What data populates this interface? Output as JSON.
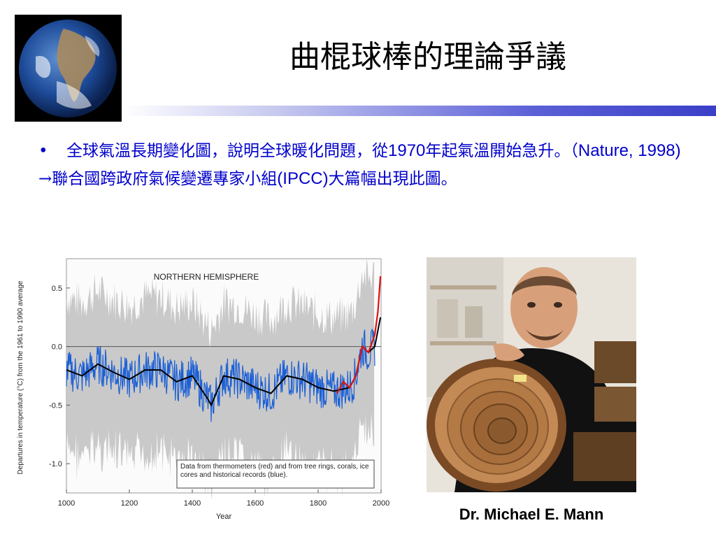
{
  "title": "曲棍球棒的理論爭議",
  "bullets": {
    "b1_prefix": "全球氣溫長期變化圖，說明全球暖化問題，從",
    "b1_year": "1970",
    "b1_mid": "年起氣溫開始急升。（",
    "b1_cite": "Nature, 1998)",
    "b2_arrow": "→",
    "b2_prefix": "聯合國跨政府氣候變遷專家小組",
    "b2_ipcc": "(IPCC)",
    "b2_suffix": "大篇幅出現此圖。"
  },
  "chart_data": {
    "type": "line",
    "title": "NORTHERN HEMISPHERE",
    "xlabel": "Year",
    "ylabel": "Departures in temperature (°C) from the 1961 to 1990 average",
    "xlim": [
      1000,
      2000
    ],
    "ylim": [
      -1.25,
      0.75
    ],
    "x_ticks": [
      "1000",
      "1200",
      "1400",
      "1600",
      "1800",
      "2000"
    ],
    "y_ticks": [
      "0.5",
      "0.0",
      "-0.5",
      "-1.0"
    ],
    "annotation": "Data from thermometers (red) and from tree rings, corals, ice cores and historical records (blue).",
    "series": [
      {
        "color": "#000000",
        "x": [
          1000,
          1050,
          1100,
          1150,
          1200,
          1250,
          1300,
          1350,
          1400,
          1450,
          1460,
          1500,
          1550,
          1600,
          1650,
          1700,
          1750,
          1800,
          1850,
          1900,
          1920,
          1940,
          1960,
          1980,
          1998
        ],
        "y": [
          -0.2,
          -0.25,
          -0.15,
          -0.22,
          -0.28,
          -0.2,
          -0.2,
          -0.3,
          -0.25,
          -0.45,
          -0.5,
          -0.25,
          -0.28,
          -0.35,
          -0.4,
          -0.25,
          -0.28,
          -0.35,
          -0.38,
          -0.35,
          -0.25,
          0.0,
          -0.05,
          0.0,
          0.25
        ]
      },
      {
        "color": "#dd1111",
        "x": [
          1860,
          1880,
          1900,
          1920,
          1940,
          1960,
          1980,
          1990,
          1998
        ],
        "y": [
          -0.4,
          -0.3,
          -0.35,
          -0.25,
          0.0,
          -0.05,
          0.1,
          0.3,
          0.6
        ]
      }
    ],
    "uncertainty_color": "#bdbdbd",
    "blue_color": "#1a5fd6"
  },
  "photo": {
    "caption": "Dr. Michael E. Mann"
  }
}
